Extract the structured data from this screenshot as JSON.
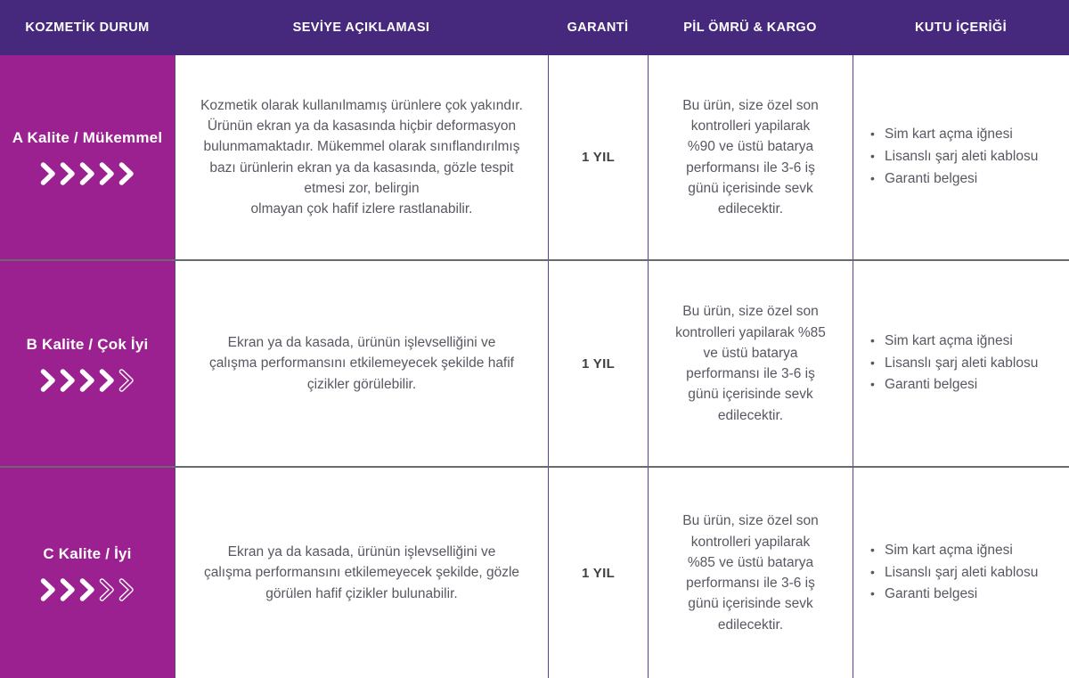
{
  "colors": {
    "header_bg": "#46297c",
    "header_text": "#ffffff",
    "grade_bg": "#9c2190",
    "grade_text": "#ffffff",
    "column_line": "#5e3f96",
    "row_line": "#6a6a6a",
    "body_text": "#5b5661",
    "warranty_text": "#404040"
  },
  "table": {
    "headers": {
      "cosmetic": "KOZMETİK DURUM",
      "description": "SEVİYE AÇIKLAMASI",
      "warranty": "GARANTİ",
      "battery_cargo": "PİL ÖMRÜ & KARGO",
      "box_contents": "KUTU İÇERİĞİ"
    },
    "rows": [
      {
        "grade": "A Kalite / Mükemmel",
        "chevrons_solid": 5,
        "chevrons_outline": 0,
        "description": "Kozmetik olarak kullanılmamış ürünlere çok yakındır.\nÜrünün ekran ya da kasasında hiçbir deformasyon\nbulunmamaktadır. Mükemmel olarak sınıflandırılmış\nbazı ürünlerin ekran ya da kasasında, gözle tespit\netmesi zor, belirgin\nolmayan çok hafif izlere rastlanabilir.",
        "warranty": "1 YIL",
        "battery_cargo": "Bu ürün, size özel son\nkontrolleri yapilarak\n%90 ve üstü batarya\nperformansı ile 3-6 iş\ngünü içerisinde sevk\nedilecektir.",
        "box_contents": [
          "Sim kart açma iğnesi",
          "Lisanslı şarj aleti kablosu",
          "Garanti belgesi"
        ]
      },
      {
        "grade": "B Kalite / Çok İyi",
        "chevrons_solid": 4,
        "chevrons_outline": 1,
        "description": "Ekran ya da kasada, ürünün işlevselliğini ve\nçalışma performansını etkilemeyecek şekilde hafif\nçizikler görülebilir.",
        "warranty": "1 YIL",
        "battery_cargo": "Bu ürün, size özel son\nkontrolleri yapilarak %85\nve üstü batarya\nperformansı ile 3-6 iş\ngünü içerisinde sevk\nedilecektir.",
        "box_contents": [
          "Sim kart açma iğnesi",
          "Lisanslı şarj aleti kablosu",
          "Garanti belgesi"
        ]
      },
      {
        "grade": "C Kalite / İyi",
        "chevrons_solid": 3,
        "chevrons_outline": 2,
        "description": "Ekran ya da kasada, ürünün işlevselliğini ve\nçalışma performansını etkilemeyecek şekilde, gözle\ngörülen hafif çizikler bulunabilir.",
        "warranty": "1 YIL",
        "battery_cargo": "Bu ürün, size özel son\nkontrolleri yapilarak\n%85 ve üstü batarya\nperformansı ile 3-6 iş\ngünü içerisinde sevk\nedilecektir.",
        "box_contents": [
          "Sim kart açma iğnesi",
          "Lisanslı şarj aleti kablosu",
          "Garanti belgesi"
        ]
      }
    ]
  }
}
